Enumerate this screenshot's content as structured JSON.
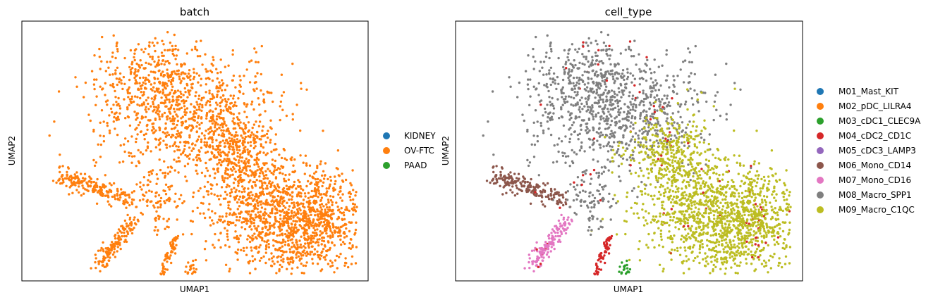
{
  "chart_data": [
    {
      "type": "scatter",
      "title": "batch",
      "xlabel": "UMAP1",
      "ylabel": "UMAP2",
      "xticks": [],
      "yticks": [],
      "legend_position": "right",
      "legend": [
        {
          "name": "KIDNEY",
          "color": "#1f77b4"
        },
        {
          "name": "OV-FTC",
          "color": "#ff7f0e"
        },
        {
          "name": "PAAD",
          "color": "#2ca02c"
        }
      ]
    },
    {
      "type": "scatter",
      "title": "cell_type",
      "xlabel": "UMAP1",
      "ylabel": "UMAP2",
      "xticks": [],
      "yticks": [],
      "legend_position": "right",
      "legend": [
        {
          "name": "M01_Mast_KIT",
          "color": "#1f77b4"
        },
        {
          "name": "M02_pDC_LILRA4",
          "color": "#ff7f0e"
        },
        {
          "name": "M03_cDC1_CLEC9A",
          "color": "#2ca02c"
        },
        {
          "name": "M04_cDC2_CD1C",
          "color": "#d62728"
        },
        {
          "name": "M05_cDC3_LAMP3",
          "color": "#9467bd"
        },
        {
          "name": "M06_Mono_CD14",
          "color": "#8c564b"
        },
        {
          "name": "M07_Mono_CD16",
          "color": "#e377c2"
        },
        {
          "name": "M08_Macro_SPP1",
          "color": "#7f7f7f"
        },
        {
          "name": "M09_Macro_C1QC",
          "color": "#bcbd22"
        }
      ]
    }
  ]
}
